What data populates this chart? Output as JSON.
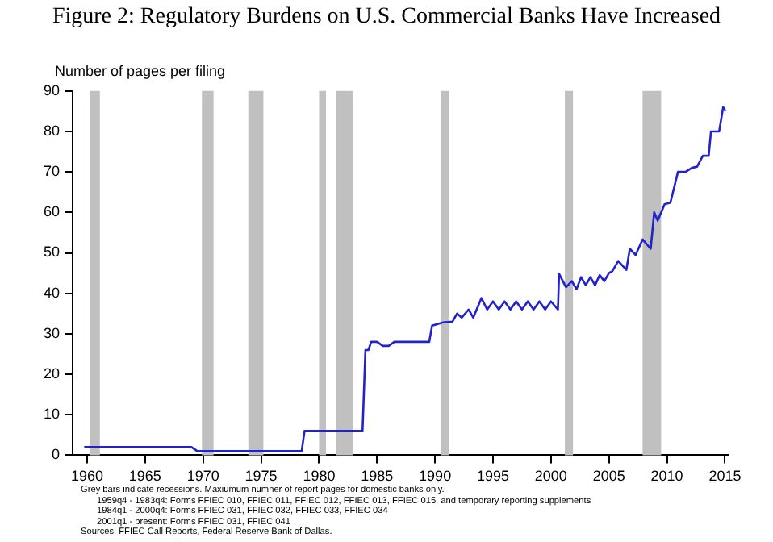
{
  "chart_data": {
    "type": "line",
    "title": "Figure 2: Regulatory Burdens on U.S. Commercial Banks Have Increased",
    "ylabel": "Number of pages per filing",
    "x": [
      1959.75,
      1969,
      1969.5,
      1978.5,
      1978.75,
      1983.75,
      1984,
      1984.25,
      1984.5,
      1985,
      1985.5,
      1986,
      1986.5,
      1987.4,
      1989.5,
      1989.75,
      1990.7,
      1991.5,
      1991.9,
      1992.3,
      1992.9,
      1993.3,
      1994,
      1994.5,
      1995,
      1995.5,
      1996,
      1996.5,
      1997,
      1997.5,
      1998,
      1998.5,
      1999,
      1999.5,
      2000,
      2000.6,
      2000.7,
      2001.3,
      2001.8,
      2002.2,
      2002.6,
      2003,
      2003.4,
      2003.8,
      2004.2,
      2004.6,
      2005,
      2005.3,
      2005.8,
      2006.5,
      2006.8,
      2007.3,
      2007.9,
      2008.6,
      2008.9,
      2009.2,
      2009.8,
      2010.3,
      2010.95,
      2011.6,
      2012.15,
      2012.6,
      2013.1,
      2013.6,
      2013.8,
      2014.5,
      2014.85,
      2015.05
    ],
    "series": [
      {
        "color": "#2222cc",
        "values": [
          2,
          2,
          1,
          1,
          6,
          6,
          26,
          26,
          28,
          28,
          27,
          27,
          28,
          28,
          28,
          32,
          32.8,
          33,
          35,
          34,
          36,
          34,
          38.8,
          36,
          38,
          36,
          38,
          36,
          38,
          36,
          38,
          36,
          38,
          36,
          38,
          36,
          44.8,
          41.5,
          43,
          41,
          44,
          42,
          44,
          42,
          44.5,
          43,
          45,
          45.5,
          48,
          45.8,
          51,
          49.5,
          53.3,
          51,
          60,
          58,
          62,
          62.4,
          70,
          70,
          71,
          71.3,
          74,
          74,
          80,
          80,
          86,
          85
        ]
      }
    ],
    "xlim": [
      1958.75,
      2015.25
    ],
    "xticks": [
      1960,
      1965,
      1970,
      1975,
      1980,
      1985,
      1990,
      1995,
      2000,
      2005,
      2010,
      2015
    ],
    "ylim": [
      0,
      90
    ],
    "yticks": [
      0,
      10,
      20,
      30,
      40,
      50,
      60,
      70,
      80,
      90
    ],
    "grid": false,
    "legend": false,
    "marker": "none",
    "line_style": "solid",
    "bands": [
      {
        "axis": "x",
        "from": 1960.25,
        "to": 1961.1,
        "color": "#c0c0c0"
      },
      {
        "axis": "x",
        "from": 1969.9,
        "to": 1970.9,
        "color": "#c0c0c0"
      },
      {
        "axis": "x",
        "from": 1973.9,
        "to": 1975.2,
        "color": "#c0c0c0"
      },
      {
        "axis": "x",
        "from": 1980,
        "to": 1980.6,
        "color": "#c0c0c0"
      },
      {
        "axis": "x",
        "from": 1981.5,
        "to": 1982.9,
        "color": "#c0c0c0"
      },
      {
        "axis": "x",
        "from": 1990.5,
        "to": 1991.2,
        "color": "#c0c0c0"
      },
      {
        "axis": "x",
        "from": 2001.2,
        "to": 2001.9,
        "color": "#c0c0c0"
      },
      {
        "axis": "x",
        "from": 2007.9,
        "to": 2009.5,
        "color": "#c0c0c0"
      }
    ],
    "annotations": [
      "Grey bars indicate recessions. Maxiumum numner of report pages for domestic banks only.",
      "1959q4 - 1983q4: Forms FFIEC 010, FFIEC 011, FFIEC 012, FFIEC 013, FFIEC 015, and temporary reporting supplements",
      "1984q1 - 2000q4: Forms FFIEC 031, FFIEC 032, FFIEC 033, FFIEC 034",
      "2001q1 - present: Forms FFIEC 031, FFIEC 041",
      "Sources: FFIEC Call Reports, Federal Reserve Bank of Dallas."
    ]
  }
}
